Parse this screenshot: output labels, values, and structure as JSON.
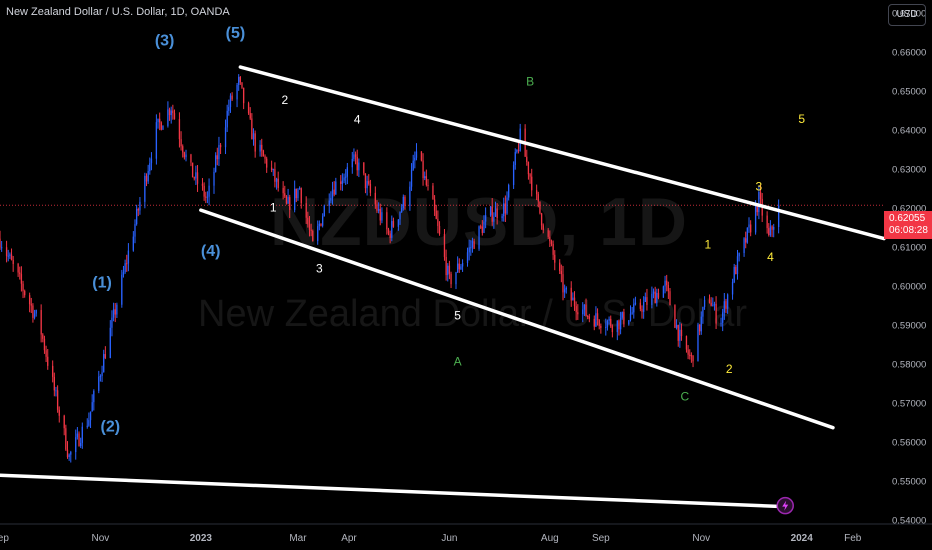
{
  "header": {
    "symbol_title": "New Zealand Dollar / U.S. Dollar, 1D, OANDA",
    "currency_button": "USD"
  },
  "watermark": {
    "ticker": "NZDUSD, 1D",
    "name": "New Zealand Dollar / U.S. Dollar"
  },
  "last_price": {
    "value": "0.62055",
    "countdown": "06:08:28",
    "color": "#f23645"
  },
  "colors": {
    "background": "#000000",
    "up_candle": "#2962ff",
    "down_candle": "#f23645",
    "trendline": "#ffffff",
    "label_blue": "#4a90d9",
    "label_white": "#ffffff",
    "label_green": "#4caf50",
    "label_yellow": "#ffeb3b",
    "axis_text": "#b2b5be"
  },
  "chart_data": {
    "type": "candlestick",
    "title": "New Zealand Dollar / U.S. Dollar, 1D, OANDA",
    "x_tick_labels": [
      "Sep",
      "Nov",
      "2023",
      "Mar",
      "Apr",
      "Jun",
      "Aug",
      "Sep",
      "Nov",
      "2024",
      "Feb"
    ],
    "y_tick_labels": [
      "0.67000",
      "0.66000",
      "0.65000",
      "0.64000",
      "0.63000",
      "0.62000",
      "0.61000",
      "0.60000",
      "0.59000",
      "0.58000",
      "0.57000",
      "0.56000",
      "0.55000",
      "0.54000"
    ],
    "ylim": [
      0.5388,
      0.6732
    ],
    "x_range": [
      "2022-09-01",
      "2024-02-20"
    ],
    "price_anchors": [
      {
        "date": "2022-09-01",
        "close": 0.612
      },
      {
        "date": "2022-09-25",
        "close": 0.59
      },
      {
        "date": "2022-10-13",
        "close": 0.556
      },
      {
        "date": "2022-10-25",
        "close": 0.566
      },
      {
        "date": "2022-11-08",
        "close": 0.59
      },
      {
        "date": "2022-11-20",
        "close": 0.612
      },
      {
        "date": "2022-12-05",
        "close": 0.64
      },
      {
        "date": "2022-12-14",
        "close": 0.646
      },
      {
        "date": "2022-12-25",
        "close": 0.63
      },
      {
        "date": "2023-01-05",
        "close": 0.622
      },
      {
        "date": "2023-01-18",
        "close": 0.646
      },
      {
        "date": "2023-01-24",
        "close": 0.652
      },
      {
        "date": "2023-02-03",
        "close": 0.636
      },
      {
        "date": "2023-02-12",
        "close": 0.63
      },
      {
        "date": "2023-02-22",
        "close": 0.62
      },
      {
        "date": "2023-03-02",
        "close": 0.625
      },
      {
        "date": "2023-03-10",
        "close": 0.61
      },
      {
        "date": "2023-03-20",
        "close": 0.624
      },
      {
        "date": "2023-04-05",
        "close": 0.632
      },
      {
        "date": "2023-04-25",
        "close": 0.613
      },
      {
        "date": "2023-05-06",
        "close": 0.623
      },
      {
        "date": "2023-05-12",
        "close": 0.634
      },
      {
        "date": "2023-05-22",
        "close": 0.62
      },
      {
        "date": "2023-06-01",
        "close": 0.601
      },
      {
        "date": "2023-06-10",
        "close": 0.607
      },
      {
        "date": "2023-06-25",
        "close": 0.618
      },
      {
        "date": "2023-07-05",
        "close": 0.62
      },
      {
        "date": "2023-07-14",
        "close": 0.638
      },
      {
        "date": "2023-07-25",
        "close": 0.62
      },
      {
        "date": "2023-08-10",
        "close": 0.598
      },
      {
        "date": "2023-08-25",
        "close": 0.592
      },
      {
        "date": "2023-09-10",
        "close": 0.59
      },
      {
        "date": "2023-09-30",
        "close": 0.596
      },
      {
        "date": "2023-10-10",
        "close": 0.6
      },
      {
        "date": "2023-10-20",
        "close": 0.585
      },
      {
        "date": "2023-10-26",
        "close": 0.581
      },
      {
        "date": "2023-11-05",
        "close": 0.598
      },
      {
        "date": "2023-11-12",
        "close": 0.59
      },
      {
        "date": "2023-11-20",
        "close": 0.602
      },
      {
        "date": "2023-11-30",
        "close": 0.614
      },
      {
        "date": "2023-12-06",
        "close": 0.622
      },
      {
        "date": "2023-12-12",
        "close": 0.612
      },
      {
        "date": "2023-12-18",
        "close": 0.6205
      }
    ],
    "trendlines": [
      {
        "name": "channel-upper",
        "from": {
          "date": "2023-01-25",
          "price": 0.656
        },
        "to": {
          "date": "2024-02-20",
          "price": 0.612
        }
      },
      {
        "name": "channel-lower",
        "from": {
          "date": "2023-01-01",
          "price": 0.6193
        },
        "to": {
          "date": "2024-01-20",
          "price": 0.5635
        }
      },
      {
        "name": "long-support",
        "from": {
          "date": "2022-08-20",
          "price": 0.5515
        },
        "to": {
          "date": "2023-12-25",
          "price": 0.5432
        }
      }
    ],
    "annotations": [
      {
        "text": "(3)",
        "date": "2022-12-10",
        "price": 0.6615,
        "color": "blue",
        "bold": true
      },
      {
        "text": "(5)",
        "date": "2023-01-22",
        "price": 0.6635,
        "color": "blue",
        "bold": true
      },
      {
        "text": "(1)",
        "date": "2022-11-02",
        "price": 0.5995,
        "color": "blue",
        "bold": true
      },
      {
        "text": "(2)",
        "date": "2022-11-07",
        "price": 0.5625,
        "color": "blue",
        "bold": true
      },
      {
        "text": "(4)",
        "date": "2023-01-07",
        "price": 0.6075,
        "color": "blue",
        "bold": true
      },
      {
        "text": "2",
        "date": "2023-02-21",
        "price": 0.6465,
        "color": "white"
      },
      {
        "text": "4",
        "date": "2023-04-06",
        "price": 0.6415,
        "color": "white"
      },
      {
        "text": "1",
        "date": "2023-02-14",
        "price": 0.6189,
        "color": "white"
      },
      {
        "text": "3",
        "date": "2023-03-14",
        "price": 0.6033,
        "color": "white"
      },
      {
        "text": "5",
        "date": "2023-06-06",
        "price": 0.5913,
        "color": "white"
      },
      {
        "text": "A",
        "date": "2023-06-06",
        "price": 0.5795,
        "color": "green"
      },
      {
        "text": "B",
        "date": "2023-07-20",
        "price": 0.6513,
        "color": "green"
      },
      {
        "text": "C",
        "date": "2023-10-22",
        "price": 0.5705,
        "color": "green"
      },
      {
        "text": "1",
        "date": "2023-11-05",
        "price": 0.6095,
        "color": "yellow"
      },
      {
        "text": "2",
        "date": "2023-11-18",
        "price": 0.5775,
        "color": "yellow"
      },
      {
        "text": "3",
        "date": "2023-12-06",
        "price": 0.6243,
        "color": "yellow"
      },
      {
        "text": "4",
        "date": "2023-12-13",
        "price": 0.6063,
        "color": "yellow"
      },
      {
        "text": "5",
        "date": "2024-01-01",
        "price": 0.6417,
        "color": "yellow"
      }
    ],
    "last_close": 0.62055,
    "grid": false
  }
}
